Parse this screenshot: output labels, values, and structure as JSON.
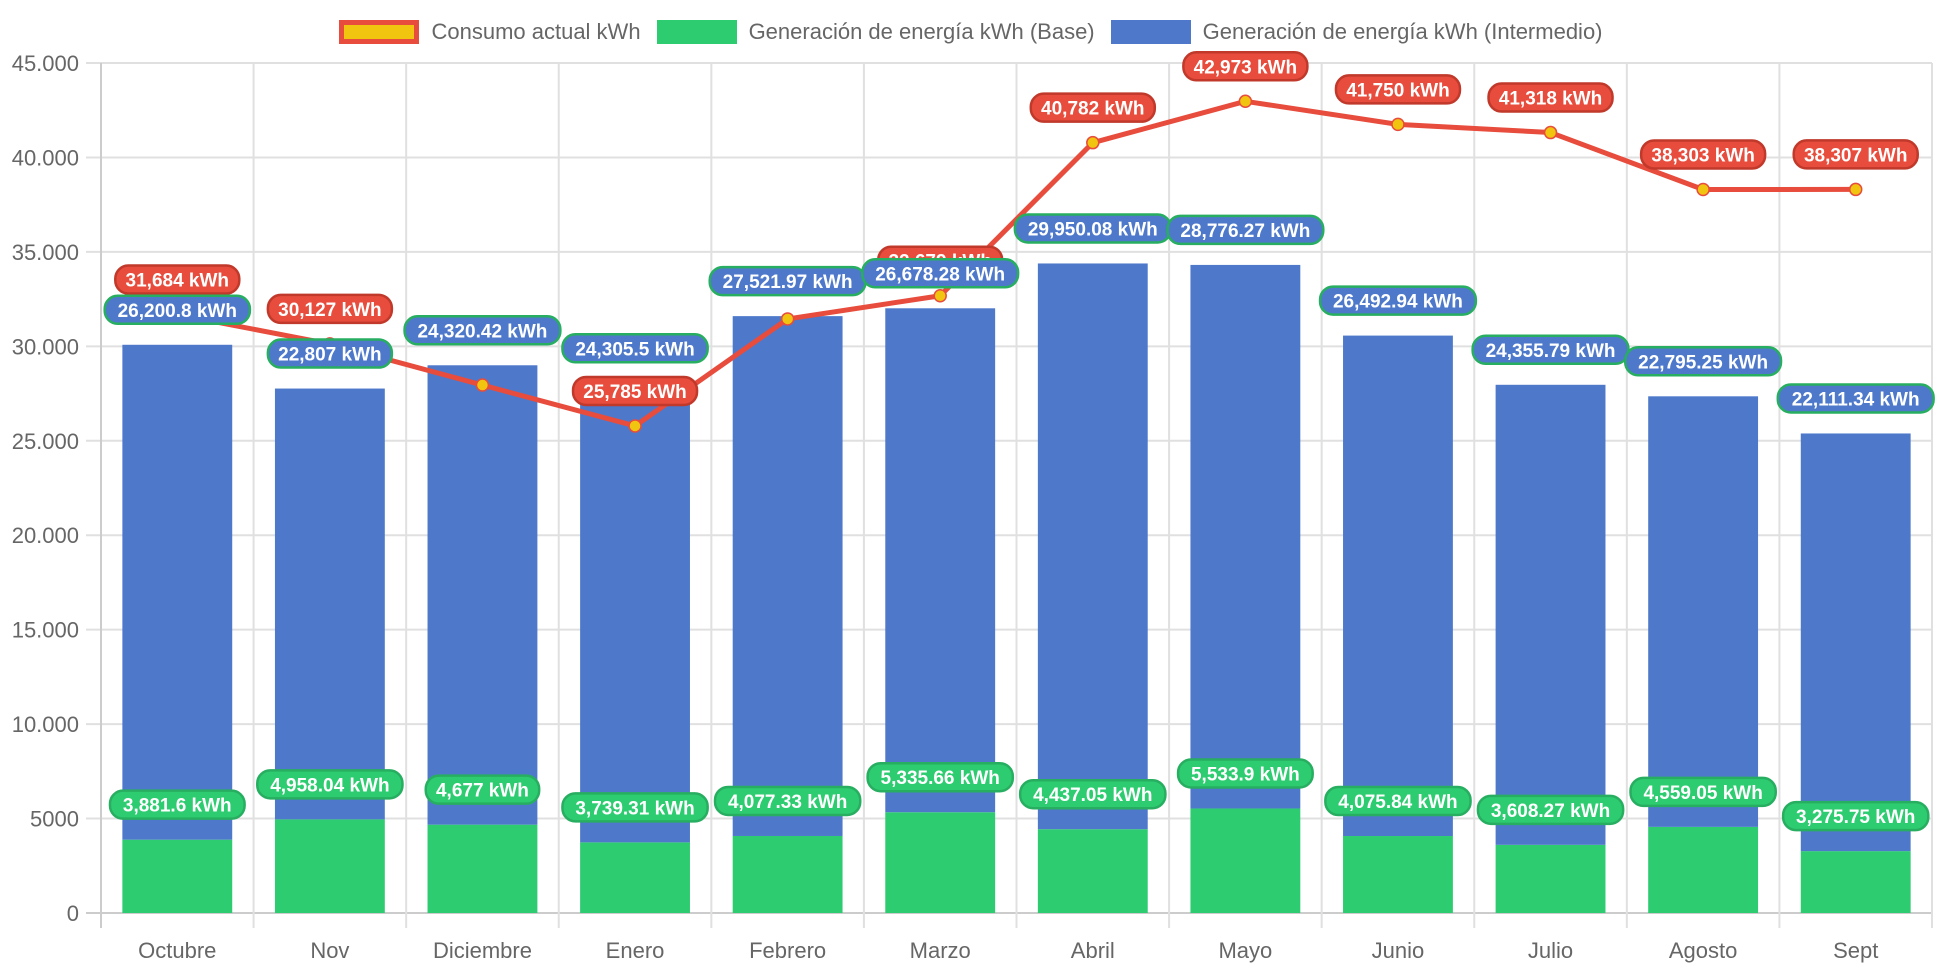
{
  "legend": [
    {
      "label": "Consumo actual kWh",
      "fill": "#f1c40f",
      "border": "#e74c3c"
    },
    {
      "label": "Generación de energía kWh (Base)",
      "fill": "#2ecc71",
      "border": "#2ecc71"
    },
    {
      "label": "Generación de energía kWh (Intermedio)",
      "fill": "#4e79cb",
      "border": "#4e79cb"
    }
  ],
  "chart_data": {
    "type": "bar",
    "stacked": true,
    "title": "",
    "xlabel": "",
    "ylabel": "",
    "ylim": [
      0,
      45000
    ],
    "grid": true,
    "legend_position": "top",
    "categories": [
      "Octubre",
      "Nov",
      "Diciembre",
      "Enero",
      "Febrero",
      "Marzo",
      "Abril",
      "Mayo",
      "Junio",
      "Julio",
      "Agosto",
      "Sept"
    ],
    "y_ticks": [
      "0",
      "5000",
      "10.000",
      "15.000",
      "20.000",
      "25.000",
      "30.000",
      "35.000",
      "40.000",
      "45.000"
    ],
    "y_tick_values": [
      0,
      5000,
      10000,
      15000,
      20000,
      25000,
      30000,
      35000,
      40000,
      45000
    ],
    "series": [
      {
        "name": "Consumo actual kWh",
        "type": "line",
        "color": "#e74c3c",
        "point_color": "#f1c40f",
        "values": [
          31684,
          30127,
          27950,
          25785,
          31450,
          32679,
          40782,
          42973,
          41750,
          41318,
          38303,
          38307
        ],
        "labels": [
          "31,684 kWh",
          "30,127 kWh",
          "",
          "25,785 kWh",
          "",
          "32,679 kWh",
          "40,782 kWh",
          "42,973 kWh",
          "41,750 kWh",
          "41,318 kWh",
          "38,303 kWh",
          "38,307 kWh"
        ]
      },
      {
        "name": "Generación de energía kWh (Base)",
        "type": "bar",
        "color": "#2ecc71",
        "values": [
          3881.6,
          4958.04,
          4677,
          3739.31,
          4077.33,
          5335.66,
          4437.05,
          5533.9,
          4075.84,
          3608.27,
          4559.05,
          3275.75
        ],
        "labels": [
          "3,881.6 kWh",
          "4,958.04 kWh",
          "4,677 kWh",
          "3,739.31 kWh",
          "4,077.33 kWh",
          "5,335.66 kWh",
          "4,437.05 kWh",
          "5,533.9 kWh",
          "4,075.84 kWh",
          "3,608.27 kWh",
          "4,559.05 kWh",
          "3,275.75 kWh"
        ]
      },
      {
        "name": "Generación de energía kWh (Intermedio)",
        "type": "bar",
        "color": "#4e79cb",
        "values": [
          26200.8,
          22807,
          24320.42,
          24305.5,
          27521.97,
          26678.28,
          29950.08,
          28776.27,
          26492.94,
          24355.79,
          22795.25,
          22111.34
        ],
        "labels": [
          "26,200.8 kWh",
          "22,807 kWh",
          "24,320.42 kWh",
          "24,305.5 kWh",
          "27,521.97 kWh",
          "26,678.28 kWh",
          "29,950.08 kWh",
          "28,776.27 kWh",
          "26,492.94 kWh",
          "24,355.79 kWh",
          "22,795.25 kWh",
          "22,111.34 kWh"
        ]
      }
    ]
  }
}
